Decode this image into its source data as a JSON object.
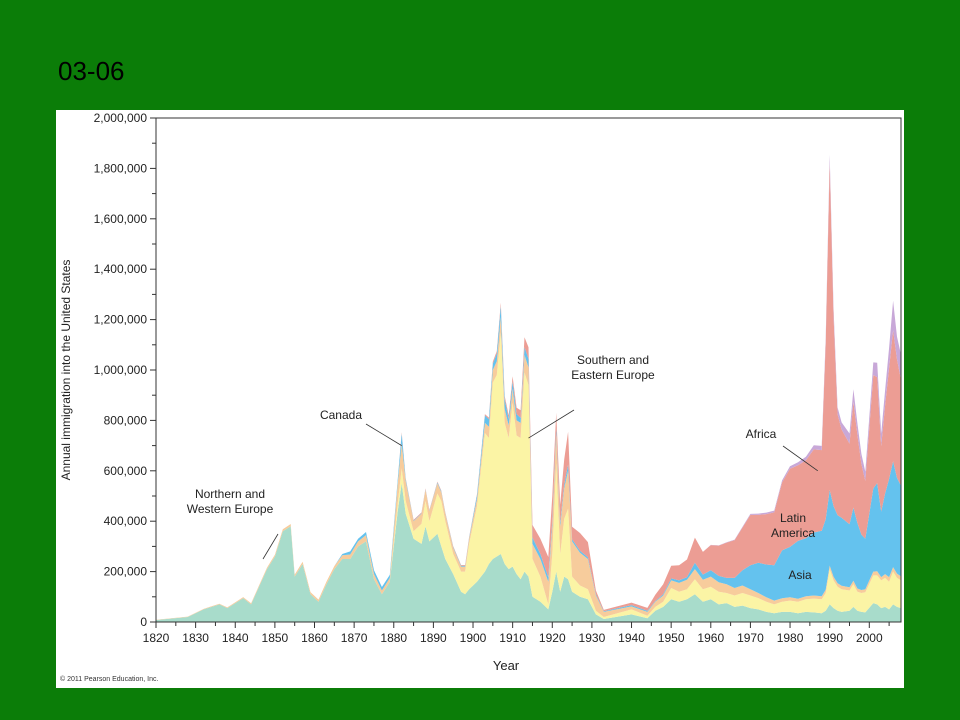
{
  "slide": {
    "title": "03-06"
  },
  "copyright": "© 2011 Pearson Education, Inc.",
  "colors": {
    "background": "#0b7d08",
    "northern_western_europe": "#a8dccb",
    "southern_eastern_europe": "#fbf4a5",
    "canada": "#f7cc9c",
    "asia": "#64c2ee",
    "latin_america": "#ec9d94",
    "africa": "#c8a8d8"
  },
  "chart_data": {
    "type": "area",
    "stacked": true,
    "xlabel": "Year",
    "ylabel": "Annual immigration into the United States",
    "xlim": [
      1820,
      2008
    ],
    "ylim": [
      0,
      2000000
    ],
    "x_ticks": [
      "1820",
      "1830",
      "1840",
      "1850",
      "1860",
      "1870",
      "1880",
      "1890",
      "1900",
      "1910",
      "1920",
      "1930",
      "1940",
      "1950",
      "1960",
      "1970",
      "1980",
      "1990",
      "2000"
    ],
    "y_ticks": [
      "0",
      "200,000",
      "400,000",
      "600,000",
      "800,000",
      "1,000,000",
      "1,200,000",
      "1,400,000",
      "1,600,000",
      "1,800,000",
      "2,000,000"
    ],
    "grid": false,
    "x": [
      1820,
      1828,
      1832,
      1834,
      1836,
      1838,
      1840,
      1842,
      1844,
      1846,
      1848,
      1850,
      1852,
      1854,
      1855,
      1857,
      1859,
      1861,
      1863,
      1865,
      1867,
      1869,
      1871,
      1873,
      1875,
      1877,
      1879,
      1881,
      1882,
      1883,
      1885,
      1887,
      1888,
      1889,
      1891,
      1892,
      1893,
      1895,
      1897,
      1898,
      1899,
      1901,
      1903,
      1904,
      1905,
      1906,
      1907,
      1908,
      1909,
      1910,
      1911,
      1912,
      1913,
      1914,
      1915,
      1917,
      1919,
      1920,
      1921,
      1922,
      1923,
      1924,
      1925,
      1927,
      1929,
      1931,
      1933,
      1940,
      1944,
      1946,
      1948,
      1950,
      1952,
      1954,
      1956,
      1958,
      1960,
      1962,
      1964,
      1966,
      1968,
      1970,
      1972,
      1974,
      1976,
      1978,
      1980,
      1982,
      1984,
      1986,
      1988,
      1989,
      1990,
      1991,
      1992,
      1993,
      1995,
      1996,
      1997,
      1998,
      1999,
      2001,
      2002,
      2003,
      2004,
      2005,
      2006,
      2007,
      2008
    ],
    "series": [
      {
        "name": "Northern and Western Europe",
        "color_key": "northern_western_europe",
        "values": [
          8000,
          20000,
          50000,
          60000,
          70000,
          55000,
          75000,
          95000,
          70000,
          140000,
          210000,
          260000,
          360000,
          380000,
          180000,
          230000,
          110000,
          80000,
          150000,
          210000,
          250000,
          250000,
          300000,
          320000,
          170000,
          110000,
          160000,
          440000,
          550000,
          430000,
          330000,
          310000,
          380000,
          320000,
          350000,
          300000,
          250000,
          190000,
          120000,
          110000,
          130000,
          160000,
          200000,
          230000,
          250000,
          260000,
          270000,
          230000,
          210000,
          220000,
          190000,
          170000,
          200000,
          180000,
          100000,
          80000,
          50000,
          120000,
          200000,
          120000,
          180000,
          170000,
          120000,
          100000,
          90000,
          30000,
          12000,
          30000,
          15000,
          45000,
          60000,
          90000,
          80000,
          90000,
          110000,
          80000,
          90000,
          70000,
          75000,
          60000,
          65000,
          55000,
          50000,
          40000,
          35000,
          40000,
          40000,
          35000,
          40000,
          38000,
          35000,
          45000,
          70000,
          55000,
          45000,
          40000,
          45000,
          60000,
          45000,
          40000,
          38000,
          75000,
          70000,
          55000,
          60000,
          50000,
          70000,
          60000,
          55000
        ]
      },
      {
        "name": "Southern and Eastern Europe",
        "color_key": "southern_eastern_europe",
        "values": [
          0,
          0,
          0,
          0,
          0,
          0,
          0,
          0,
          0,
          0,
          0,
          0,
          0,
          0,
          0,
          0,
          0,
          0,
          0,
          0,
          0,
          0,
          0,
          0,
          0,
          0,
          0,
          30000,
          60000,
          50000,
          30000,
          80000,
          100000,
          80000,
          160000,
          180000,
          150000,
          80000,
          80000,
          90000,
          180000,
          300000,
          550000,
          500000,
          700000,
          720000,
          880000,
          560000,
          520000,
          650000,
          550000,
          560000,
          790000,
          760000,
          150000,
          100000,
          20000,
          150000,
          430000,
          150000,
          230000,
          280000,
          60000,
          45000,
          40000,
          15000,
          8000,
          20000,
          10000,
          15000,
          20000,
          45000,
          40000,
          40000,
          60000,
          50000,
          50000,
          50000,
          40000,
          45000,
          50000,
          50000,
          45000,
          40000,
          35000,
          40000,
          45000,
          45000,
          50000,
          55000,
          55000,
          70000,
          140000,
          110000,
          95000,
          90000,
          80000,
          90000,
          75000,
          75000,
          80000,
          110000,
          115000,
          110000,
          115000,
          110000,
          130000,
          115000,
          110000
        ]
      },
      {
        "name": "Canada",
        "color_key": "canada",
        "values": [
          1000,
          1500,
          2000,
          2500,
          2800,
          3000,
          3500,
          4000,
          4500,
          5000,
          6000,
          7000,
          8000,
          9000,
          8000,
          9000,
          8500,
          9000,
          10000,
          12000,
          15000,
          18000,
          20000,
          25000,
          20000,
          15000,
          15000,
          80000,
          98000,
          80000,
          40000,
          40000,
          45000,
          40000,
          40000,
          35000,
          30000,
          25000,
          20000,
          20000,
          20000,
          30000,
          40000,
          45000,
          50000,
          55000,
          60000,
          55000,
          50000,
          55000,
          60000,
          60000,
          70000,
          70000,
          60000,
          70000,
          90000,
          110000,
          120000,
          110000,
          120000,
          150000,
          140000,
          130000,
          120000,
          60000,
          20000,
          12000,
          15000,
          20000,
          25000,
          30000,
          35000,
          38000,
          40000,
          38000,
          40000,
          38000,
          35000,
          30000,
          30000,
          25000,
          20000,
          18000,
          15000,
          14000,
          13000,
          12000,
          12000,
          12000,
          12000,
          13000,
          14000,
          14000,
          14000,
          14000,
          13000,
          14000,
          13000,
          12000,
          12000,
          15000,
          16000,
          13000,
          15000,
          18000,
          18000,
          17000,
          16000
        ]
      },
      {
        "name": "Asia",
        "color_key": "asia",
        "values": [
          0,
          0,
          0,
          0,
          0,
          0,
          0,
          0,
          0,
          0,
          0,
          0,
          0,
          0,
          0,
          0,
          0,
          0,
          0,
          0,
          5000,
          12000,
          10000,
          12000,
          15000,
          14000,
          12000,
          15000,
          40000,
          8000,
          2000,
          2000,
          2000,
          2000,
          4000,
          4000,
          3000,
          3000,
          3000,
          3000,
          4000,
          15000,
          30000,
          30000,
          25000,
          30000,
          45000,
          40000,
          25000,
          30000,
          25000,
          20000,
          30000,
          35000,
          25000,
          20000,
          18000,
          20000,
          20000,
          15000,
          15000,
          25000,
          8000,
          8000,
          7000,
          5000,
          3000,
          5000,
          4000,
          3000,
          5000,
          8000,
          10000,
          10000,
          25000,
          20000,
          25000,
          25000,
          25000,
          40000,
          60000,
          95000,
          120000,
          130000,
          140000,
          190000,
          200000,
          230000,
          230000,
          250000,
          260000,
          280000,
          300000,
          280000,
          270000,
          270000,
          250000,
          290000,
          260000,
          220000,
          200000,
          330000,
          350000,
          260000,
          320000,
          390000,
          420000,
          380000,
          360000
        ]
      },
      {
        "name": "Latin America",
        "color_key": "latin_america",
        "values": [
          0,
          0,
          0,
          0,
          0,
          0,
          0,
          0,
          0,
          0,
          0,
          0,
          0,
          0,
          0,
          0,
          0,
          0,
          0,
          0,
          0,
          0,
          0,
          0,
          0,
          0,
          0,
          0,
          5000,
          3000,
          3000,
          3000,
          3000,
          3000,
          3000,
          3000,
          3000,
          3000,
          3000,
          3000,
          3000,
          3000,
          5000,
          6000,
          8000,
          10000,
          12000,
          12000,
          15000,
          20000,
          25000,
          30000,
          40000,
          45000,
          50000,
          60000,
          80000,
          100000,
          60000,
          70000,
          100000,
          130000,
          50000,
          70000,
          60000,
          15000,
          5000,
          10000,
          12000,
          25000,
          40000,
          50000,
          60000,
          70000,
          100000,
          90000,
          100000,
          120000,
          140000,
          150000,
          170000,
          200000,
          190000,
          200000,
          210000,
          270000,
          310000,
          300000,
          310000,
          330000,
          320000,
          700000,
          1300000,
          750000,
          400000,
          350000,
          320000,
          420000,
          350000,
          280000,
          230000,
          450000,
          420000,
          260000,
          350000,
          440000,
          520000,
          470000,
          420000
        ]
      },
      {
        "name": "Africa",
        "color_key": "africa",
        "values": [
          0,
          0,
          0,
          0,
          0,
          0,
          0,
          0,
          0,
          0,
          0,
          0,
          0,
          0,
          0,
          0,
          0,
          0,
          0,
          0,
          0,
          0,
          0,
          0,
          0,
          0,
          0,
          0,
          0,
          0,
          0,
          0,
          0,
          0,
          0,
          0,
          0,
          0,
          0,
          0,
          0,
          0,
          0,
          0,
          0,
          0,
          0,
          0,
          0,
          0,
          0,
          0,
          0,
          0,
          0,
          0,
          0,
          0,
          0,
          0,
          0,
          0,
          0,
          0,
          0,
          0,
          0,
          0,
          0,
          0,
          0,
          0,
          0,
          0,
          0,
          0,
          1000,
          1000,
          1500,
          2000,
          3000,
          4000,
          5000,
          6000,
          7000,
          8000,
          10000,
          12000,
          14000,
          16000,
          17000,
          20000,
          30000,
          30000,
          27000,
          28000,
          40000,
          50000,
          45000,
          40000,
          36000,
          50000,
          58000,
          50000,
          60000,
          80000,
          117000,
          90000,
          100000
        ]
      }
    ],
    "annotations": [
      {
        "text": "Northern and\nWestern Europe",
        "x": 1847,
        "y": 250000
      },
      {
        "text": "Canada",
        "x": 1882,
        "y": 700000
      },
      {
        "text": "Southern and\nEastern Europe",
        "x": 1914,
        "y": 730000
      },
      {
        "text": "Africa",
        "x": 1987,
        "y": 600000
      },
      {
        "text": "Latin\nAmerica",
        "x": null,
        "y": null
      },
      {
        "text": "Asia",
        "x": null,
        "y": null
      }
    ]
  }
}
